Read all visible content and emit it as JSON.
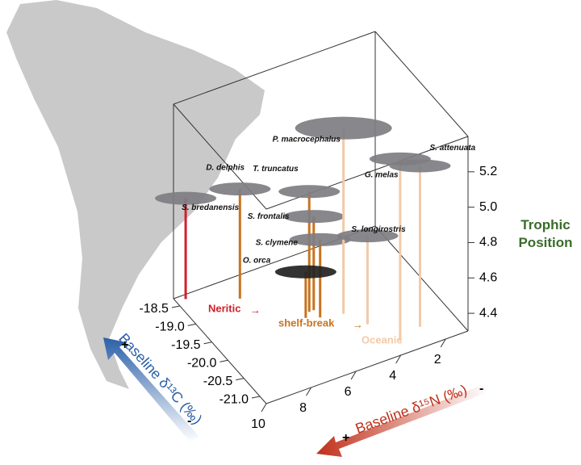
{
  "chart_data": {
    "type": "scatter3d",
    "x_label": "Baseline δ¹⁵N (‰)",
    "y_label": "Baseline δ¹³C (‰)",
    "z_label": [
      "Trophic",
      "Position"
    ],
    "x_signs": [
      "+",
      "-"
    ],
    "y_signs": [
      "+",
      "-"
    ],
    "xlim": [
      1,
      10
    ],
    "ylim": [
      -21.2,
      -18.3
    ],
    "zlim": [
      4.3,
      5.4
    ],
    "xticks": [
      2,
      4,
      6,
      8,
      10
    ],
    "yticks": [
      -18.5,
      {
        "value": -19,
        "label": "-19.0"
      },
      -19.5,
      {
        "value": -20,
        "label": "-20.0"
      },
      -20.5,
      {
        "value": -21,
        "label": "-21.0"
      }
    ],
    "zticks": [
      4.4,
      4.6,
      4.8,
      {
        "value": 5,
        "label": "5.0"
      },
      5.2
    ],
    "habitats": [
      {
        "name": "Neritic",
        "color": "#d0202a"
      },
      {
        "name": "shelf-break",
        "color": "#c8731f"
      },
      {
        "name": "Oceanic",
        "color": "#f2c9a8"
      }
    ],
    "points": [
      {
        "name": "S. bredanensis",
        "x": 9.6,
        "y": -18.4,
        "z": 4.87,
        "color": "#d0202a"
      },
      {
        "name": "D. delphis",
        "x": 7.75,
        "y": -18.8,
        "z": 4.92,
        "color": "#c8731f"
      },
      {
        "name": "T. truncatus",
        "x": 5.8,
        "y": -19.6,
        "z": 4.98,
        "color": "#c8731f"
      },
      {
        "name": "S. frontalis",
        "x": 5.6,
        "y": -19.6,
        "z": 4.83,
        "color": "#c8731f"
      },
      {
        "name": "S. clymene",
        "x": 5.6,
        "y": -19.8,
        "z": 4.74,
        "color": "#c8731f"
      },
      {
        "name": "O. orca",
        "x": 6.1,
        "y": -19.7,
        "z": 4.56,
        "color": "#c8731f"
      },
      {
        "name": "P. macrocephalus",
        "x": 4.7,
        "y": -19.9,
        "z": 5.35,
        "color": "#f2c9a8"
      },
      {
        "name": "G. melas",
        "x": 3.6,
        "y": -20.9,
        "z": 5.33,
        "color": "#f2c9a8"
      },
      {
        "name": "S. longirostris",
        "x": 4.2,
        "y": -20.3,
        "z": 4.8,
        "color": "#f2c9a8"
      },
      {
        "name": "S. attenuata",
        "x": 2.5,
        "y": -20.75,
        "z": 5.21,
        "color": "#f2c9a8"
      }
    ]
  }
}
